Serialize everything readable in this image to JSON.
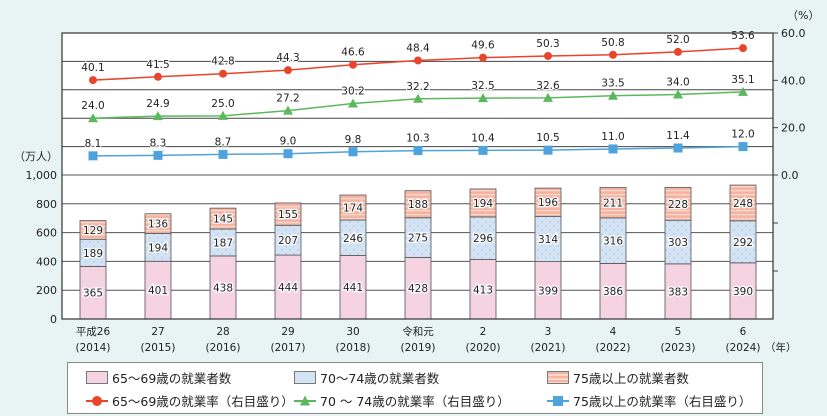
{
  "chart_data": {
    "type": "bar+line",
    "left_axis": {
      "unit_label": "（万人）",
      "range": [
        0,
        1000
      ],
      "ticks": [
        "0",
        "200",
        "400",
        "600",
        "800",
        "1,000"
      ]
    },
    "right_axis": {
      "unit_label": "（%）",
      "range": [
        0,
        60
      ],
      "ticks": [
        "0.0",
        "20.0",
        "40.0",
        "60.0"
      ]
    },
    "x_unit_label": "（年）",
    "categories": [
      {
        "era": "平成26",
        "year": "(2014)"
      },
      {
        "era": "27",
        "year": "(2015)"
      },
      {
        "era": "28",
        "year": "(2016)"
      },
      {
        "era": "29",
        "year": "(2017)"
      },
      {
        "era": "30",
        "year": "(2018)"
      },
      {
        "era": "令和元",
        "year": "(2019)"
      },
      {
        "era": "2",
        "year": "(2020)"
      },
      {
        "era": "3",
        "year": "(2021)"
      },
      {
        "era": "4",
        "year": "(2022)"
      },
      {
        "era": "5",
        "year": "(2023)"
      },
      {
        "era": "6",
        "year": "(2024)"
      }
    ],
    "bar_series": [
      {
        "name": "65～69歳の就業者数",
        "color": "#f5d3e1",
        "values": [
          365,
          401,
          438,
          444,
          441,
          428,
          413,
          399,
          386,
          383,
          390
        ]
      },
      {
        "name": "70～74歳の就業者数",
        "color": "#d3e3f3",
        "values": [
          189,
          194,
          187,
          207,
          246,
          275,
          296,
          314,
          316,
          303,
          292
        ]
      },
      {
        "name": "75歳以上の就業者数",
        "color": "#f5b4a2",
        "values": [
          129,
          136,
          145,
          155,
          174,
          188,
          194,
          196,
          211,
          228,
          248
        ]
      }
    ],
    "line_series": [
      {
        "name": "65～69歳の就業率（右目盛り）",
        "color": "#e8452a",
        "marker": "circle",
        "values": [
          40.1,
          41.5,
          42.8,
          44.3,
          46.6,
          48.4,
          49.6,
          50.3,
          50.8,
          52.0,
          53.6
        ]
      },
      {
        "name": "70 ～ 74歳の就業率（右目盛り）",
        "color": "#5cb85c",
        "marker": "triangle",
        "values": [
          24.0,
          24.9,
          25.0,
          27.2,
          30.2,
          32.2,
          32.5,
          32.6,
          33.5,
          34.0,
          35.1
        ]
      },
      {
        "name": "75歳以上の就業率（右目盛り）",
        "color": "#4fa3dc",
        "marker": "square",
        "values": [
          8.1,
          8.3,
          8.7,
          9.0,
          9.8,
          10.3,
          10.4,
          10.5,
          11.0,
          11.4,
          12.0
        ]
      }
    ],
    "legend_position": "bottom"
  }
}
